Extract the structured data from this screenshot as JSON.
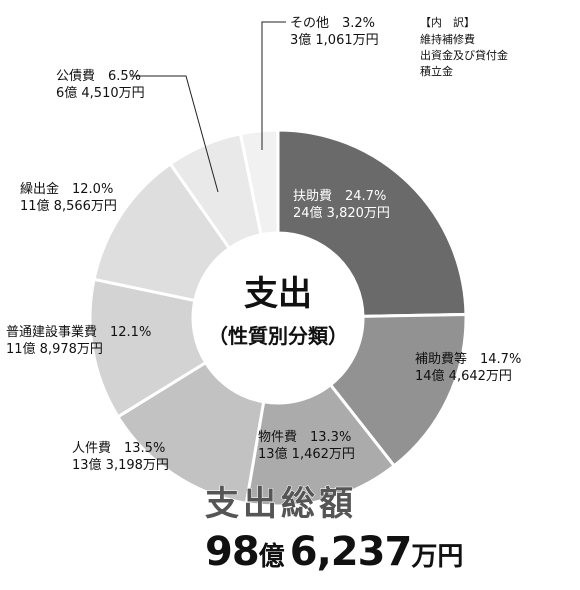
{
  "chart_data": {
    "type": "pie",
    "title": "支出",
    "subtitle": "（性質別分類）",
    "slices": [
      {
        "name": "扶助費",
        "percent": 24.7,
        "amount": "24億 3,820万円",
        "color": "#6a6a6a"
      },
      {
        "name": "補助費等",
        "percent": 14.7,
        "amount": "14億 4,642万円",
        "color": "#929292"
      },
      {
        "name": "物件費",
        "percent": 13.3,
        "amount": "13億 1,462万円",
        "color": "#ababab"
      },
      {
        "name": "人件費",
        "percent": 13.5,
        "amount": "13億 3,198万円",
        "color": "#c2c2c2"
      },
      {
        "name": "普通建設事業費",
        "percent": 12.1,
        "amount": "11億 8,978万円",
        "color": "#d3d3d3"
      },
      {
        "name": "繰出金",
        "percent": 12.0,
        "amount": "11億 8,566万円",
        "color": "#dedede"
      },
      {
        "name": "公債費",
        "percent": 6.5,
        "amount": "6億 4,510万円",
        "color": "#e9e9e9"
      },
      {
        "name": "その他",
        "percent": 3.2,
        "amount": "3億 1,061万円",
        "color": "#f1f1f1"
      }
    ],
    "note": {
      "heading": "【内　訳】",
      "lines": [
        "維持補修費",
        "出資金及び貸付金",
        "積立金"
      ]
    },
    "total": {
      "label": "支出総額",
      "number1": "98",
      "unit1": "億",
      "number2": "6,237",
      "unit2": "万円"
    }
  }
}
